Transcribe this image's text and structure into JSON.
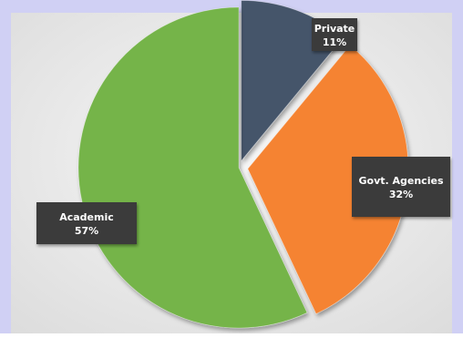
{
  "chart_data": {
    "type": "pie",
    "slices": [
      {
        "label": "Private",
        "value": 11,
        "pct_text": "11%",
        "color": "#44546A"
      },
      {
        "label": "Govt. Agencies",
        "value": 32,
        "pct_text": "32%",
        "color": "#F58330"
      },
      {
        "label": "Academic",
        "value": 57,
        "pct_text": "57%",
        "color": "#74B448"
      }
    ],
    "data_labels": "callout boxes with category name and percentage",
    "legend": "none",
    "title": ""
  },
  "colors": {
    "outer_background": "#D0D0F4",
    "plot_background": "#EEEEEE",
    "callout_fill": "#3A3A3A",
    "callout_text": "#FFFFFF"
  }
}
